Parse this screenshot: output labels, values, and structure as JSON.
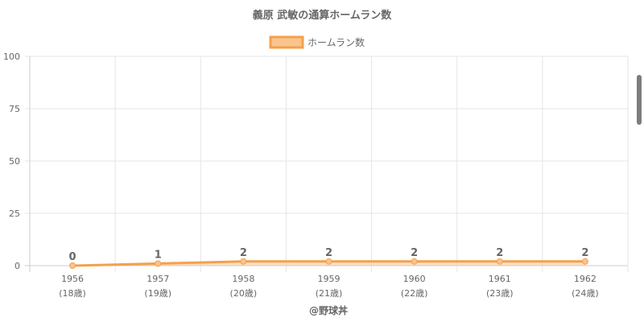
{
  "chart_data": {
    "type": "line",
    "title": "義原 武敏の通算ホームラン数",
    "legend": {
      "label": "ホームラン数",
      "position": "top"
    },
    "x": [
      "1956",
      "1957",
      "1958",
      "1959",
      "1960",
      "1961",
      "1962"
    ],
    "x_sub": [
      "(18歳)",
      "(19歳)",
      "(20歳)",
      "(21歳)",
      "(22歳)",
      "(23歳)",
      "(24歳)"
    ],
    "series": [
      {
        "name": "ホームラン数",
        "values": [
          0,
          1,
          2,
          2,
          2,
          2,
          2
        ]
      }
    ],
    "data_labels": [
      "0",
      "1",
      "2",
      "2",
      "2",
      "2",
      "2"
    ],
    "ylim": [
      0,
      100
    ],
    "y_ticks": [
      0,
      25,
      50,
      75,
      100
    ],
    "y_tick_labels": [
      "0",
      "25",
      "50",
      "75",
      "100"
    ],
    "grid": true,
    "colors": {
      "line": "#f5a04a",
      "fill": "#f8c48f",
      "grid": "#e5e5e5",
      "text": "#666666"
    }
  },
  "footer": {
    "credit": "@野球丼"
  }
}
